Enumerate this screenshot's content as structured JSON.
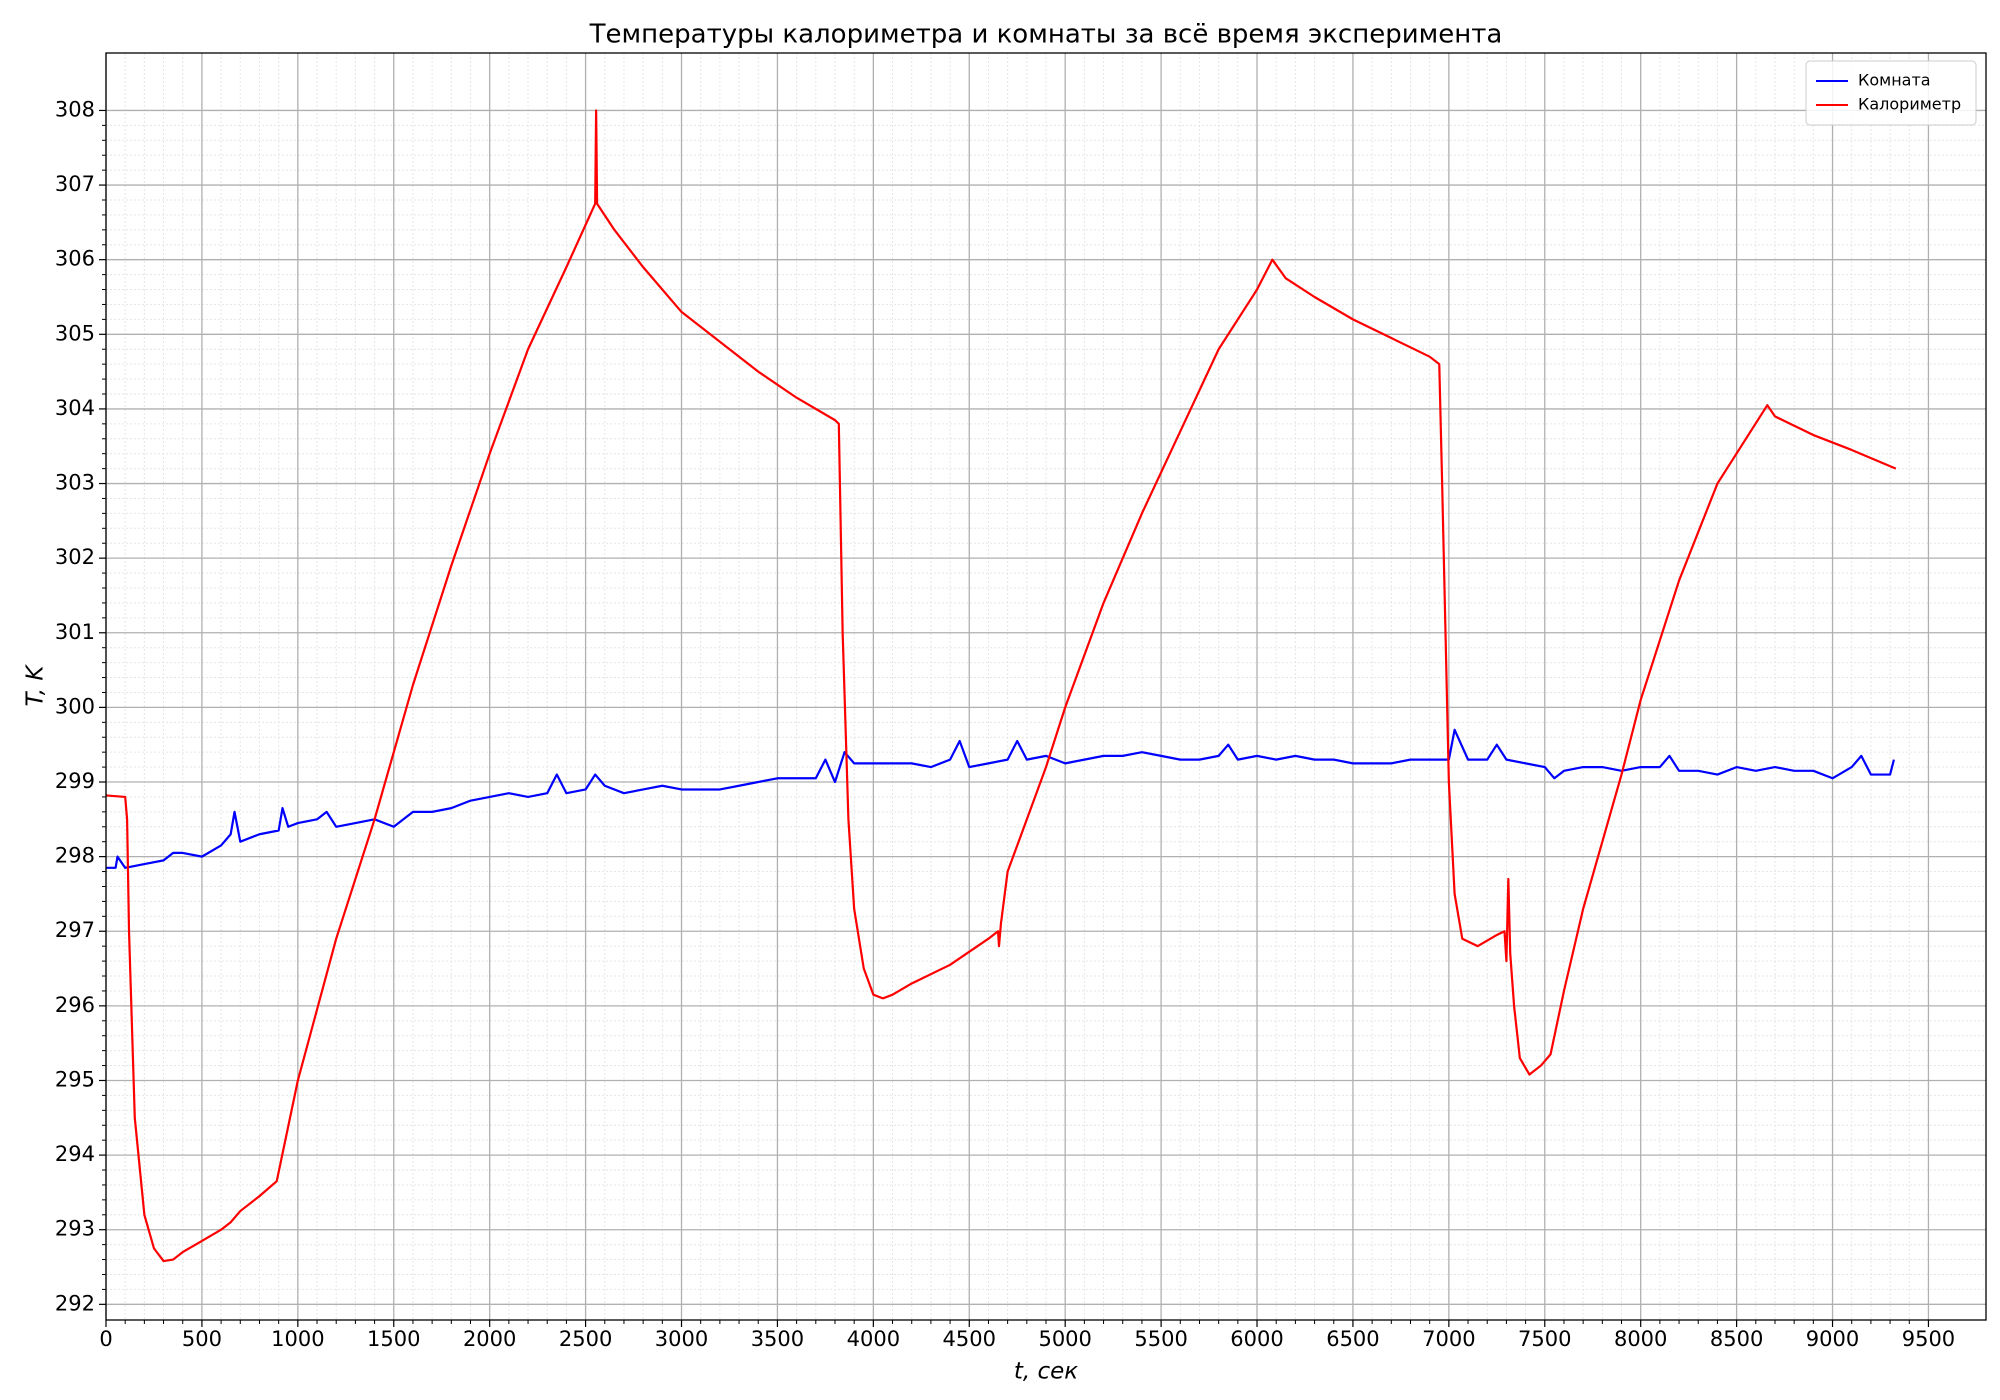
{
  "chart_data": {
    "type": "line",
    "title": "Температуры калориметра и комнаты за всё время эксперимента",
    "xlabel": "t, сек",
    "ylabel": "T, K",
    "xlim": [
      0,
      9800
    ],
    "ylim": [
      291.79,
      308.77
    ],
    "xticks": [
      0,
      500,
      1000,
      1500,
      2000,
      2500,
      3000,
      3500,
      4000,
      4500,
      5000,
      5500,
      6000,
      6500,
      7000,
      7500,
      8000,
      8500,
      9000,
      9500
    ],
    "yticks": [
      292,
      293,
      294,
      295,
      296,
      297,
      298,
      299,
      300,
      301,
      302,
      303,
      304,
      305,
      306,
      307,
      308
    ],
    "grid": true,
    "minor_grid": true,
    "legend": "upper right",
    "series": [
      {
        "name": "Комната",
        "color": "#0000ff",
        "x": [
          0,
          50,
          60,
          100,
          200,
          300,
          350,
          400,
          500,
          600,
          650,
          670,
          700,
          800,
          900,
          920,
          950,
          1000,
          1100,
          1150,
          1200,
          1300,
          1400,
          1500,
          1600,
          1700,
          1800,
          1900,
          2000,
          2100,
          2200,
          2300,
          2350,
          2400,
          2500,
          2550,
          2600,
          2700,
          2800,
          2900,
          3000,
          3100,
          3200,
          3300,
          3400,
          3500,
          3600,
          3700,
          3750,
          3800,
          3850,
          3900,
          4000,
          4100,
          4200,
          4300,
          4400,
          4450,
          4500,
          4600,
          4700,
          4750,
          4800,
          4900,
          5000,
          5100,
          5200,
          5300,
          5400,
          5500,
          5600,
          5700,
          5800,
          5850,
          5900,
          6000,
          6100,
          6200,
          6300,
          6400,
          6500,
          6600,
          6700,
          6800,
          6900,
          7000,
          7030,
          7100,
          7200,
          7250,
          7300,
          7400,
          7500,
          7550,
          7600,
          7700,
          7800,
          7900,
          8000,
          8100,
          8150,
          8200,
          8300,
          8400,
          8500,
          8600,
          8700,
          8800,
          8900,
          9000,
          9100,
          9150,
          9200,
          9300,
          9320
        ],
        "values": [
          297.85,
          297.85,
          298.0,
          297.85,
          297.9,
          297.95,
          298.05,
          298.05,
          298.0,
          298.15,
          298.3,
          298.6,
          298.2,
          298.3,
          298.35,
          298.65,
          298.4,
          298.45,
          298.5,
          298.6,
          298.4,
          298.45,
          298.5,
          298.4,
          298.6,
          298.6,
          298.65,
          298.75,
          298.8,
          298.85,
          298.8,
          298.85,
          299.1,
          298.85,
          298.9,
          299.1,
          298.95,
          298.85,
          298.9,
          298.95,
          298.9,
          298.9,
          298.9,
          298.95,
          299.0,
          299.05,
          299.05,
          299.05,
          299.3,
          299.0,
          299.4,
          299.25,
          299.25,
          299.25,
          299.25,
          299.2,
          299.3,
          299.55,
          299.2,
          299.25,
          299.3,
          299.55,
          299.3,
          299.35,
          299.25,
          299.3,
          299.35,
          299.35,
          299.4,
          299.35,
          299.3,
          299.3,
          299.35,
          299.5,
          299.3,
          299.35,
          299.3,
          299.35,
          299.3,
          299.3,
          299.25,
          299.25,
          299.25,
          299.3,
          299.3,
          299.3,
          299.7,
          299.3,
          299.3,
          299.5,
          299.3,
          299.25,
          299.2,
          299.05,
          299.15,
          299.2,
          299.2,
          299.15,
          299.2,
          299.2,
          299.35,
          299.15,
          299.15,
          299.1,
          299.2,
          299.15,
          299.2,
          299.15,
          299.15,
          299.05,
          299.2,
          299.35,
          299.1,
          299.1,
          299.3
        ]
      },
      {
        "name": "Калориметр",
        "color": "#ff0000",
        "x": [
          0,
          100,
          110,
          120,
          150,
          200,
          250,
          300,
          350,
          400,
          500,
          600,
          650,
          700,
          800,
          890,
          1000,
          1200,
          1400,
          1600,
          1800,
          2000,
          2200,
          2400,
          2550,
          2555,
          2560,
          2650,
          2800,
          3000,
          3200,
          3400,
          3600,
          3800,
          3820,
          3840,
          3870,
          3900,
          3950,
          4000,
          4050,
          4100,
          4200,
          4400,
          4600,
          4650,
          4655,
          4665,
          4700,
          4800,
          4900,
          5000,
          5200,
          5400,
          5600,
          5800,
          6000,
          6080,
          6150,
          6300,
          6500,
          6700,
          6900,
          6950,
          6965,
          7000,
          7030,
          7070,
          7150,
          7250,
          7290,
          7300,
          7310,
          7320,
          7340,
          7370,
          7420,
          7480,
          7530,
          7600,
          7700,
          7900,
          8000,
          8200,
          8400,
          8660,
          8700,
          8900,
          9100,
          9330
        ],
        "values": [
          298.82,
          298.8,
          298.5,
          297.0,
          294.5,
          293.2,
          292.75,
          292.58,
          292.6,
          292.7,
          292.85,
          293.0,
          293.1,
          293.25,
          293.45,
          293.65,
          295.0,
          296.9,
          298.5,
          300.3,
          301.9,
          303.4,
          304.8,
          305.9,
          306.75,
          308.0,
          306.75,
          306.4,
          305.9,
          305.3,
          304.9,
          304.5,
          304.15,
          303.85,
          303.8,
          301.0,
          298.5,
          297.3,
          296.5,
          296.15,
          296.1,
          296.15,
          296.3,
          296.55,
          296.9,
          297.0,
          296.8,
          297.1,
          297.8,
          298.5,
          299.2,
          300.0,
          301.4,
          302.6,
          303.7,
          304.8,
          305.6,
          306.0,
          305.75,
          305.5,
          305.2,
          304.95,
          304.7,
          304.6,
          303.0,
          299.0,
          297.5,
          296.9,
          296.8,
          296.95,
          297.0,
          296.6,
          297.7,
          296.7,
          296.0,
          295.3,
          295.08,
          295.2,
          295.35,
          296.2,
          297.3,
          299.1,
          300.1,
          301.7,
          303.0,
          304.05,
          303.9,
          303.65,
          303.45,
          303.2
        ]
      }
    ]
  }
}
